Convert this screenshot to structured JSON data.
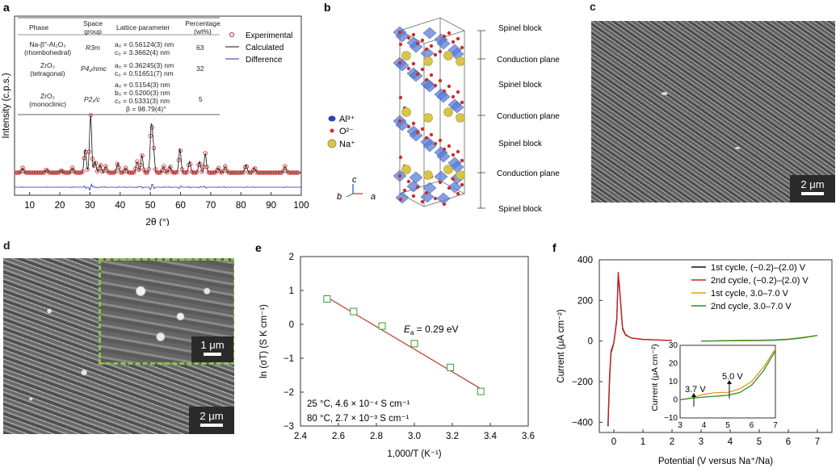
{
  "panels": {
    "a": {
      "label": "a",
      "ylabel": "Intensity (c.p.s.)",
      "xlabel": "2θ (°)",
      "xticks": [
        "10",
        "20",
        "30",
        "40",
        "50",
        "60",
        "70",
        "80",
        "90",
        "100"
      ],
      "legend": [
        "Experimental",
        "Calculated",
        "Difference"
      ],
      "table": {
        "headers": [
          "Phase",
          "Space group",
          "Lattice parameter",
          "Percentage (wt%)"
        ],
        "rows": [
          {
            "phase": "Na-β″-Al₂O₃",
            "phase2": "(rhombohedral)",
            "group": "R3m",
            "lattice": [
              "a₀ = 0.56124(3) nm",
              "c₀ = 3.3662(4) nm"
            ],
            "pct": "63"
          },
          {
            "phase": "ZrO₂",
            "phase2": "(tetragonal)",
            "group": "P4₂/nmc",
            "lattice": [
              "a₀ = 0.36245(3) nm",
              "c₀ = 0.51651(7) nm"
            ],
            "pct": "32"
          },
          {
            "phase": "ZrO₂",
            "phase2": "(monoclinic)",
            "group": "P2₁/c",
            "lattice": [
              "a₀ = 0.5154(3) nm",
              "b₀ = 0.5200(3) nm",
              "c₀ = 0.5331(3) nm",
              "β = 98.79(4)°"
            ],
            "pct": "5"
          }
        ]
      }
    },
    "b": {
      "label": "b",
      "legend": [
        "Al³⁺",
        "O²⁻",
        "Na⁺"
      ],
      "layers": [
        "Spinel block",
        "Conduction plane",
        "Spinel block",
        "Conduction plane",
        "Spinel block",
        "Conduction plane",
        "Spinel block"
      ],
      "axes": [
        "c",
        "b",
        "a"
      ]
    },
    "c": {
      "label": "c",
      "scale": "2 μm"
    },
    "d": {
      "label": "d",
      "scale_main": "2 μm",
      "scale_inset": "1 μm"
    },
    "e": {
      "label": "e",
      "annotation_ea": "E",
      "annotation_ea_sub": "a",
      "annotation_ea_val": " = 0.29 eV",
      "note1": "25 °C, 4.6 × 10⁻⁴ S cm⁻¹",
      "note2": "80 °C, 2.7 × 10⁻³ S cm⁻¹"
    },
    "f": {
      "label": "f",
      "legend": [
        "1st cycle, (−0.2)–(2.0) V",
        "2nd cycle, (−0.2)–(2.0) V",
        "1st cycle, 3.0–7.0 V",
        "2nd cycle, 3.0–7.0 V"
      ],
      "inset_ylabel": "Current (μA cm⁻²)",
      "inset_xticks": [
        "3",
        "4",
        "5",
        "6",
        "7"
      ],
      "inset_yticks": [
        "30",
        "20",
        "10",
        "0",
        "−10"
      ],
      "arrow1": "3.7 V",
      "arrow2": "5.0 V"
    }
  },
  "chart_data": [
    {
      "type": "scatter",
      "panel": "e",
      "title": "",
      "xlabel": "1,000/T (K⁻¹)",
      "ylabel": "ln (σT) (S K cm⁻¹)",
      "xlim": [
        2.4,
        3.6
      ],
      "ylim": [
        -3,
        2
      ],
      "xticks": [
        2.4,
        2.6,
        2.8,
        3.0,
        3.2,
        3.4,
        3.6
      ],
      "yticks": [
        2,
        1,
        0,
        -1,
        -2,
        -3
      ],
      "points": [
        [
          2.54,
          0.75
        ],
        [
          2.68,
          0.38
        ],
        [
          2.83,
          -0.05
        ],
        [
          3.0,
          -0.57
        ],
        [
          3.19,
          -1.27
        ],
        [
          3.35,
          -1.98
        ]
      ],
      "fit": [
        [
          2.54,
          0.8
        ],
        [
          3.35,
          -1.9
        ]
      ],
      "colors": {
        "points": "#3a9a3a",
        "fit": "#c0392b"
      }
    },
    {
      "type": "line",
      "panel": "f",
      "title": "",
      "xlabel": "Potential (V versus Na⁺/Na)",
      "ylabel": "Current (μA cm⁻²)",
      "xlim": [
        -0.5,
        7.5
      ],
      "ylim": [
        -450,
        400
      ],
      "xticks": [
        0,
        1,
        2,
        3,
        4,
        5,
        6,
        7
      ],
      "yticks": [
        400,
        200,
        0,
        -200,
        -400
      ],
      "series": [
        {
          "name": "1st cycle, (−0.2)–(2.0) V",
          "color": "#111111",
          "x": [
            -0.2,
            -0.15,
            -0.1,
            0.0,
            0.1,
            0.15,
            0.2,
            0.3,
            0.4,
            0.6,
            1.0,
            1.5,
            2.0
          ],
          "y": [
            -420,
            -200,
            -60,
            -10,
            100,
            320,
            250,
            60,
            30,
            15,
            8,
            5,
            3
          ]
        },
        {
          "name": "2nd cycle, (−0.2)–(2.0) V",
          "color": "#d21f1f",
          "x": [
            -0.2,
            -0.15,
            -0.1,
            0.0,
            0.1,
            0.15,
            0.2,
            0.3,
            0.4,
            0.6,
            1.0,
            1.5,
            2.0
          ],
          "y": [
            -400,
            -180,
            -50,
            -8,
            110,
            340,
            260,
            65,
            32,
            15,
            8,
            5,
            3
          ]
        },
        {
          "name": "1st cycle, 3.0–7.0 V",
          "color": "#e69a1c",
          "x": [
            3.0,
            3.5,
            3.7,
            4.0,
            4.5,
            5.0,
            5.5,
            6.0,
            6.5,
            7.0
          ],
          "y": [
            0,
            1,
            2,
            3,
            4,
            4,
            6,
            10,
            18,
            28
          ]
        },
        {
          "name": "2nd cycle, 3.0–7.0 V",
          "color": "#2e8b2e",
          "x": [
            3.0,
            3.5,
            4.0,
            4.5,
            5.0,
            5.5,
            6.0,
            6.5,
            7.0
          ],
          "y": [
            0,
            1,
            1.5,
            2,
            2.5,
            4,
            8,
            16,
            27
          ]
        }
      ]
    },
    {
      "type": "line",
      "panel": "a",
      "title": "",
      "xlabel": "2θ (°)",
      "ylabel": "Intensity (c.p.s.)",
      "xlim": [
        5,
        100
      ],
      "xticks": [
        10,
        20,
        30,
        40,
        50,
        60,
        70,
        80,
        90,
        100
      ],
      "series": [
        {
          "name": "Experimental",
          "color": "#d21f1f"
        },
        {
          "name": "Calculated",
          "color": "#111111"
        },
        {
          "name": "Difference",
          "color": "#1f2fb0"
        }
      ],
      "peaks_deg": [
        7.7,
        15.6,
        20.5,
        24.2,
        28.4,
        30.2,
        31.7,
        33.4,
        35.2,
        39.2,
        41.8,
        45.6,
        47.2,
        50.3,
        51.0,
        54.4,
        56.5,
        59.8,
        63.0,
        66.3,
        68.2,
        72.5,
        74.8,
        81.7,
        84.5,
        94.6
      ]
    }
  ]
}
